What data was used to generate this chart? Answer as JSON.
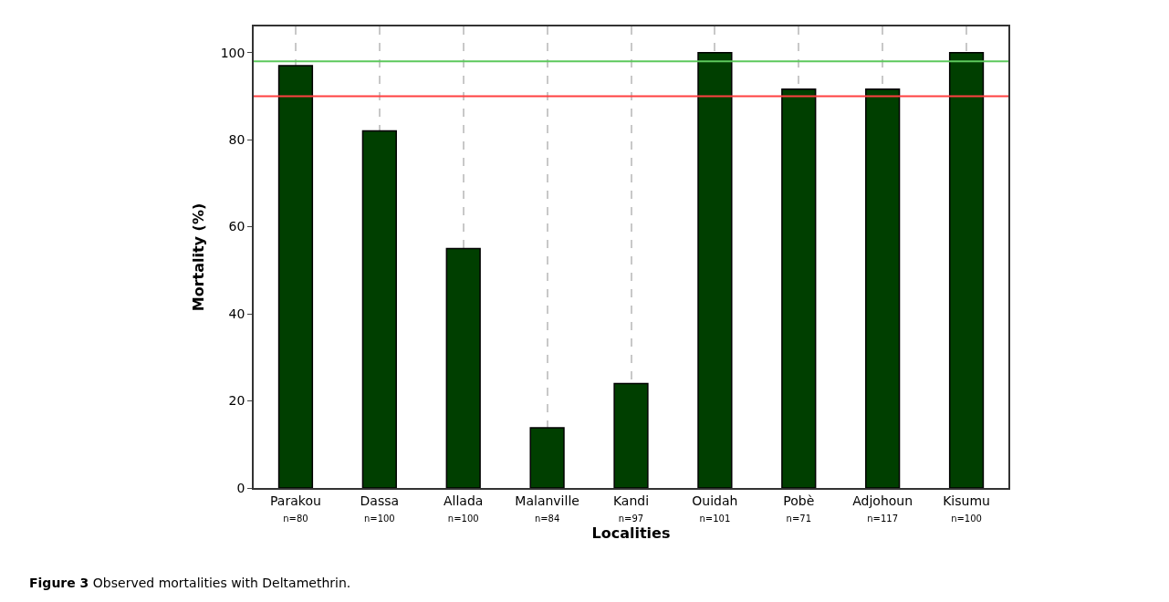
{
  "chart_data": {
    "type": "bar",
    "xlabel": "Localities",
    "ylabel": "Mortality (%)",
    "categories": [
      "Parakou\nn=80",
      "Dassa\nn=100",
      "Allada\nn=100",
      "Malanville\nn=84",
      "Kandi\nn=97",
      "Ouidah\nn=101",
      "Pobè\nn=71",
      "Adjohoun\nn=117",
      "Kisumu\nn=100"
    ],
    "values": [
      97,
      82,
      55,
      13.8,
      24,
      100,
      91.6,
      91.6,
      100
    ],
    "color": "#003f00",
    "ylim": [
      0,
      106
    ],
    "yticks": [
      0,
      20,
      40,
      60,
      80,
      100
    ],
    "grid": "x",
    "ref_lines": [
      {
        "axis": "y",
        "value": 98,
        "color": "#5cc85c"
      },
      {
        "axis": "y",
        "value": 90,
        "color": "#ff4040"
      }
    ],
    "annotations": [
      "Figure 3 Observed mortalities with Deltamethrin."
    ]
  }
}
